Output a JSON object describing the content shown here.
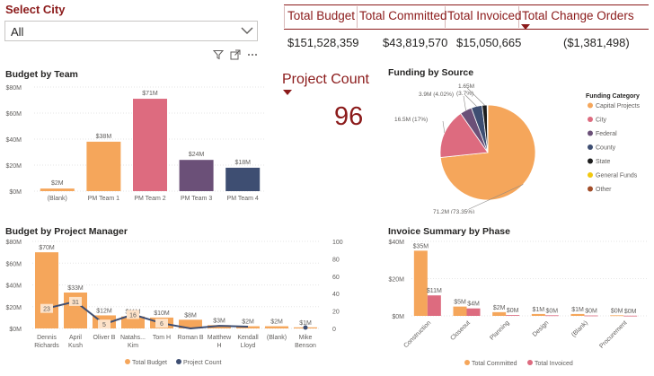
{
  "slicer": {
    "title": "Select City",
    "value": "All"
  },
  "kpis": {
    "headers": [
      "Total Budget",
      "Total Committed",
      "Total Invoiced",
      "Total Change Orders"
    ],
    "values": [
      "$151,528,359",
      "$43,819,570",
      "$15,050,665",
      "($1,381,498)"
    ]
  },
  "project_count": {
    "label": "Project Count",
    "value": "96"
  },
  "chart_data": [
    {
      "type": "bar",
      "title": "Budget by Team",
      "categories": [
        "(Blank)",
        "PM Team 1",
        "PM Team 2",
        "PM Team 3",
        "PM Team 4"
      ],
      "values": [
        2,
        38,
        71,
        24,
        18
      ],
      "data_labels": [
        "$2M",
        "$38M",
        "$71M",
        "$24M",
        "$18M"
      ],
      "colors": [
        "#f5a65b",
        "#f5a65b",
        "#dd6b7f",
        "#6b5078",
        "#3e4e72"
      ],
      "yticks": [
        "$0M",
        "$20M",
        "$40M",
        "$60M",
        "$80M"
      ],
      "ylim": [
        0,
        80
      ],
      "xlabel": "",
      "ylabel": ""
    },
    {
      "type": "pie",
      "title": "Funding by Source",
      "legend_title": "Funding Category",
      "legend_position": "right",
      "slices": [
        {
          "name": "Capital Projects",
          "value": 73.35,
          "color": "#f5a65b",
          "label": "71.2M (73.35%)"
        },
        {
          "name": "City",
          "value": 17,
          "color": "#dd6b7f",
          "label": "16.5M (17%)"
        },
        {
          "name": "Federal",
          "value": 4.02,
          "color": "#6b5078",
          "label": "3.9M (4.02%)"
        },
        {
          "name": "County",
          "value": 3.7,
          "color": "#3e4e72",
          "label": "(3.7%)"
        },
        {
          "name": "State",
          "value": 1.7,
          "color": "#1e1e1e",
          "label": "1.65M"
        },
        {
          "name": "General Funds",
          "value": 0.13,
          "color": "#f2c80f",
          "label": ""
        },
        {
          "name": "Other",
          "value": 0.1,
          "color": "#a24e2a",
          "label": ""
        }
      ]
    },
    {
      "type": "bar+line",
      "title": "Budget by Project Manager",
      "categories": [
        "Dennis Richards",
        "April Kush",
        "Oliver B",
        "Natahs... Kim",
        "Tom H",
        "Roman B",
        "Matthew H",
        "Kendall Lloyd",
        "(Blank)",
        "Mike Benson"
      ],
      "category_lines": [
        [
          "Dennis",
          "Richards"
        ],
        [
          "April",
          "Kush"
        ],
        [
          "Oliver B",
          ""
        ],
        [
          "Natahs...",
          "Kim"
        ],
        [
          "Tom H",
          ""
        ],
        [
          "Roman B",
          ""
        ],
        [
          "Matthew",
          "H"
        ],
        [
          "Kendall",
          "Lloyd"
        ],
        [
          "(Blank)",
          ""
        ],
        [
          "Mike",
          "Benson"
        ]
      ],
      "series": [
        {
          "name": "Total Budget",
          "values": [
            70,
            33,
            12,
            11,
            10,
            8,
            3,
            2,
            2,
            1
          ],
          "labels": [
            "$70M",
            "$33M",
            "$12M",
            "$11M",
            "$10M",
            "$8M",
            "$3M",
            "$2M",
            "$2M",
            "$1M"
          ],
          "color": "#f5a65b"
        },
        {
          "name": "Project Count",
          "values": [
            23,
            31,
            5,
            16,
            6,
            0,
            3,
            2,
            2,
            1
          ],
          "labels": [
            "23",
            "31",
            "5",
            "16",
            "6",
            "",
            "",
            "",
            "",
            ""
          ],
          "color": "#3e4e72"
        }
      ],
      "yticks_left": [
        "$0M",
        "$20M",
        "$40M",
        "$60M",
        "$80M"
      ],
      "yticks_right": [
        "0",
        "20",
        "40",
        "60",
        "80",
        "100"
      ],
      "ylim_left": [
        0,
        80
      ],
      "ylim_right": [
        0,
        100
      ]
    },
    {
      "type": "bar",
      "title": "Invoice Summary by Phase",
      "categories": [
        "Construction",
        "Closeout",
        "Planning",
        "Design",
        "(Blank)",
        "Procurement"
      ],
      "series": [
        {
          "name": "Total Committed",
          "values": [
            35,
            5,
            2,
            1,
            1,
            0.3
          ],
          "labels": [
            "$35M",
            "$5M",
            "$2M",
            "$1M",
            "$1M",
            "$0M"
          ],
          "color": "#f5a65b"
        },
        {
          "name": "Total Invoiced",
          "values": [
            11,
            4,
            0.4,
            0.3,
            0.2,
            0.1
          ],
          "labels": [
            "$11M",
            "$4M",
            "$0M",
            "$0M",
            "$0M",
            "$0M"
          ],
          "color": "#dd6b7f"
        }
      ],
      "yticks": [
        "$0M",
        "$20M",
        "$40M"
      ],
      "ylim": [
        0,
        40
      ]
    }
  ]
}
